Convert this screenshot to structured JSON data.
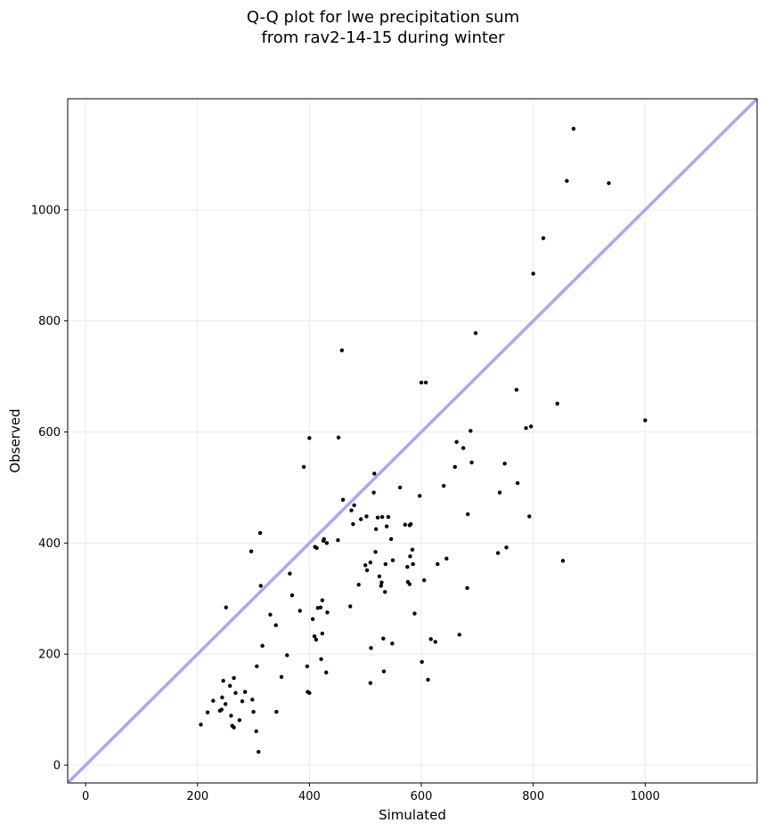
{
  "chart_data": {
    "type": "scatter",
    "title_lines": [
      "Q-Q plot for lwe precipitation sum",
      "from rav2-14-15 during winter"
    ],
    "xlabel": "Simulated",
    "ylabel": "Observed",
    "xlim": [
      -32,
      1200
    ],
    "ylim": [
      -32,
      1200
    ],
    "xticks": [
      0,
      200,
      400,
      600,
      800,
      1000
    ],
    "yticks": [
      0,
      200,
      400,
      600,
      800,
      1000
    ],
    "grid": true,
    "reference_line": {
      "from": [
        -32,
        -32
      ],
      "to": [
        1200,
        1200
      ],
      "color": "#a8a8f5"
    },
    "point_color": "#000000",
    "points": [
      [
        206,
        73
      ],
      [
        218,
        95
      ],
      [
        228,
        116
      ],
      [
        240,
        98
      ],
      [
        243,
        100
      ],
      [
        244,
        122
      ],
      [
        246,
        152
      ],
      [
        250,
        110
      ],
      [
        251,
        284
      ],
      [
        258,
        143
      ],
      [
        260,
        89
      ],
      [
        262,
        71
      ],
      [
        265,
        157
      ],
      [
        265,
        68
      ],
      [
        268,
        130
      ],
      [
        275,
        81
      ],
      [
        280,
        115
      ],
      [
        285,
        132
      ],
      [
        296,
        385
      ],
      [
        298,
        118
      ],
      [
        300,
        96
      ],
      [
        305,
        61
      ],
      [
        306,
        178
      ],
      [
        309,
        24
      ],
      [
        312,
        418
      ],
      [
        313,
        323
      ],
      [
        316,
        215
      ],
      [
        330,
        271
      ],
      [
        340,
        252
      ],
      [
        341,
        96
      ],
      [
        350,
        159
      ],
      [
        360,
        198
      ],
      [
        365,
        345
      ],
      [
        369,
        306
      ],
      [
        383,
        278
      ],
      [
        390,
        537
      ],
      [
        396,
        178
      ],
      [
        397,
        132
      ],
      [
        400,
        130
      ],
      [
        400,
        589
      ],
      [
        406,
        263
      ],
      [
        409,
        232
      ],
      [
        410,
        393
      ],
      [
        412,
        226
      ],
      [
        413,
        391
      ],
      [
        415,
        283
      ],
      [
        420,
        284
      ],
      [
        421,
        191
      ],
      [
        423,
        297
      ],
      [
        423,
        237
      ],
      [
        425,
        404
      ],
      [
        426,
        407
      ],
      [
        430,
        167
      ],
      [
        431,
        400
      ],
      [
        432,
        275
      ],
      [
        451,
        405
      ],
      [
        452,
        590
      ],
      [
        458,
        747
      ],
      [
        460,
        478
      ],
      [
        473,
        286
      ],
      [
        475,
        459
      ],
      [
        478,
        434
      ],
      [
        480,
        468
      ],
      [
        488,
        325
      ],
      [
        492,
        443
      ],
      [
        500,
        360
      ],
      [
        502,
        448
      ],
      [
        503,
        351
      ],
      [
        509,
        148
      ],
      [
        509,
        365
      ],
      [
        510,
        211
      ],
      [
        515,
        491
      ],
      [
        516,
        525
      ],
      [
        518,
        384
      ],
      [
        519,
        425
      ],
      [
        522,
        446
      ],
      [
        525,
        340
      ],
      [
        528,
        323
      ],
      [
        529,
        329
      ],
      [
        530,
        447
      ],
      [
        532,
        228
      ],
      [
        533,
        169
      ],
      [
        535,
        312
      ],
      [
        536,
        362
      ],
      [
        538,
        430
      ],
      [
        541,
        447
      ],
      [
        546,
        407
      ],
      [
        548,
        219
      ],
      [
        549,
        369
      ],
      [
        562,
        500
      ],
      [
        571,
        433
      ],
      [
        575,
        357
      ],
      [
        576,
        330
      ],
      [
        579,
        326
      ],
      [
        579,
        432
      ],
      [
        580,
        376
      ],
      [
        581,
        434
      ],
      [
        584,
        388
      ],
      [
        585,
        362
      ],
      [
        588,
        273
      ],
      [
        597,
        485
      ],
      [
        600,
        689
      ],
      [
        601,
        186
      ],
      [
        605,
        333
      ],
      [
        608,
        689
      ],
      [
        612,
        154
      ],
      [
        617,
        227
      ],
      [
        625,
        222
      ],
      [
        629,
        362
      ],
      [
        640,
        503
      ],
      [
        645,
        372
      ],
      [
        660,
        537
      ],
      [
        663,
        582
      ],
      [
        668,
        235
      ],
      [
        675,
        571
      ],
      [
        682,
        319
      ],
      [
        683,
        452
      ],
      [
        688,
        602
      ],
      [
        690,
        545
      ],
      [
        697,
        778
      ],
      [
        737,
        382
      ],
      [
        740,
        491
      ],
      [
        749,
        543
      ],
      [
        752,
        392
      ],
      [
        770,
        676
      ],
      [
        772,
        508
      ],
      [
        787,
        607
      ],
      [
        793,
        448
      ],
      [
        796,
        610
      ],
      [
        800,
        885
      ],
      [
        818,
        949
      ],
      [
        843,
        651
      ],
      [
        853,
        368
      ],
      [
        860,
        1052
      ],
      [
        872,
        1146
      ],
      [
        935,
        1048
      ],
      [
        1000,
        621
      ]
    ]
  }
}
